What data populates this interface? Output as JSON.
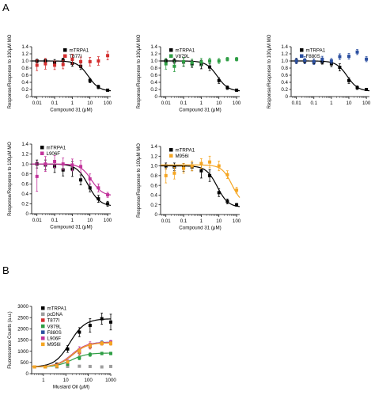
{
  "panel_labels": [
    "A",
    "B"
  ],
  "chart_data": [
    {
      "id": "a1",
      "type": "scatter",
      "xscale": "log",
      "xlabel": "Compound 31 (μM)",
      "ylabel": "Response/Response to 100μM MO",
      "xlim": [
        0.005,
        150
      ],
      "ylim": [
        0,
        1.4
      ],
      "xticks": [
        0.01,
        0.1,
        1,
        10,
        100
      ],
      "xtick_labels": [
        "0.01",
        "0.1",
        "1",
        "10",
        "100"
      ],
      "yticks": [
        0,
        0.2,
        0.4,
        0.6,
        0.8,
        1.0,
        1.2,
        1.4
      ],
      "ytick_labels": [
        "0",
        "0.2",
        "0.4",
        "0.6",
        "0.8",
        "1.0",
        "1.2",
        "1.4"
      ],
      "legend": [
        "mTRPA1",
        "T877I"
      ],
      "series": [
        {
          "name": "mTRPA1",
          "color": "#000000",
          "x": [
            0.01,
            0.03,
            0.1,
            0.3,
            1,
            3,
            10,
            30,
            100
          ],
          "y": [
            1.0,
            1.0,
            0.96,
            1.02,
            0.93,
            0.85,
            0.45,
            0.27,
            0.18
          ],
          "err": [
            0.05,
            0.06,
            0.08,
            0.06,
            0.08,
            0.09,
            0.06,
            0.05,
            0.03
          ],
          "fit": {
            "top": 1.0,
            "bottom": 0.15,
            "ic50": 8,
            "hill": 1.4
          }
        },
        {
          "name": "T877I",
          "color": "#d32f2f",
          "x": [
            0.01,
            0.03,
            0.1,
            0.3,
            1,
            3,
            10,
            30,
            100
          ],
          "y": [
            0.88,
            0.92,
            0.88,
            0.9,
            1.05,
            0.98,
            0.98,
            1.0,
            1.15
          ],
          "err": [
            0.15,
            0.15,
            0.12,
            0.12,
            0.14,
            0.13,
            0.12,
            0.12,
            0.12
          ]
        }
      ]
    },
    {
      "id": "a2",
      "type": "scatter",
      "xscale": "log",
      "xlabel": "Compound 31 (μM)",
      "ylabel": "Response/Response to 100μM MO",
      "xlim": [
        0.005,
        150
      ],
      "ylim": [
        0,
        1.4
      ],
      "xticks": [
        0.01,
        0.1,
        1,
        10,
        100
      ],
      "xtick_labels": [
        "0.01",
        "0.1",
        "1",
        "10",
        "100"
      ],
      "yticks": [
        0,
        0.2,
        0.4,
        0.6,
        0.8,
        1.0,
        1.2,
        1.4
      ],
      "ytick_labels": [
        "0",
        "0.2",
        "0.4",
        "0.6",
        "0.8",
        "1.0",
        "1.2",
        "1.4"
      ],
      "legend": [
        "mTRPA1",
        "V879L"
      ],
      "series": [
        {
          "name": "mTRPA1",
          "color": "#000000",
          "x": [
            0.01,
            0.03,
            0.1,
            0.3,
            1,
            3,
            10,
            30,
            100
          ],
          "y": [
            1.0,
            1.0,
            0.97,
            0.92,
            0.9,
            0.83,
            0.45,
            0.25,
            0.18
          ],
          "err": [
            0.06,
            0.07,
            0.12,
            0.1,
            0.12,
            0.1,
            0.08,
            0.05,
            0.03
          ],
          "fit": {
            "top": 1.0,
            "bottom": 0.15,
            "ic50": 8,
            "hill": 1.4
          }
        },
        {
          "name": "V879L",
          "color": "#2e9e44",
          "x": [
            0.01,
            0.03,
            0.1,
            0.3,
            1,
            3,
            10,
            30,
            100
          ],
          "y": [
            0.92,
            0.85,
            0.98,
            0.95,
            0.97,
            1.0,
            1.0,
            1.05,
            1.05
          ],
          "err": [
            0.15,
            0.15,
            0.12,
            0.1,
            0.1,
            0.08,
            0.07,
            0.05,
            0.05
          ]
        }
      ]
    },
    {
      "id": "a3",
      "type": "scatter",
      "xscale": "log",
      "xlabel": "",
      "ylabel": "Response/Response to 100μM MO",
      "xlim": [
        0.005,
        150
      ],
      "ylim": [
        0,
        1.4
      ],
      "xticks": [
        0.01,
        0.1,
        1,
        10,
        100
      ],
      "xtick_labels": [
        "0.01",
        "0.1",
        "1",
        "10",
        "100"
      ],
      "yticks": [
        0,
        0.2,
        0.4,
        0.6,
        0.8,
        1.0,
        1.2,
        1.4
      ],
      "ytick_labels": [
        "0",
        "0.2",
        "0.4",
        "0.6",
        "0.8",
        "1.0",
        "1.2",
        "1.4"
      ],
      "legend": [
        "mTRPA1",
        "F880S"
      ],
      "series": [
        {
          "name": "mTRPA1",
          "color": "#000000",
          "x": [
            0.01,
            0.03,
            0.1,
            0.3,
            1,
            3,
            10,
            30,
            100
          ],
          "y": [
            1.0,
            1.0,
            0.97,
            0.97,
            0.92,
            0.82,
            0.45,
            0.25,
            0.2
          ],
          "err": [
            0.06,
            0.06,
            0.05,
            0.06,
            0.08,
            0.1,
            0.08,
            0.05,
            0.03
          ],
          "fit": {
            "top": 1.0,
            "bottom": 0.15,
            "ic50": 8,
            "hill": 1.4
          }
        },
        {
          "name": "F880S",
          "color": "#2b4fa0",
          "x": [
            0.01,
            0.03,
            0.1,
            0.3,
            1,
            3,
            10,
            30,
            100
          ],
          "y": [
            1.0,
            1.02,
            0.98,
            1.05,
            1.0,
            1.12,
            1.13,
            1.25,
            1.05
          ],
          "err": [
            0.08,
            0.1,
            0.08,
            0.08,
            0.07,
            0.08,
            0.08,
            0.07,
            0.07
          ]
        }
      ]
    },
    {
      "id": "a4",
      "type": "scatter",
      "xscale": "log",
      "xlabel": "Compound 31 (μM)",
      "ylabel": "Response/Response to 100μM MO",
      "xlim": [
        0.005,
        150
      ],
      "ylim": [
        0,
        1.4
      ],
      "xticks": [
        0.01,
        0.1,
        1,
        10,
        100
      ],
      "xtick_labels": [
        "0.01",
        "0.1",
        "1",
        "10",
        "100"
      ],
      "yticks": [
        0,
        0.2,
        0.4,
        0.6,
        0.8,
        1.0,
        1.2,
        1.4
      ],
      "ytick_labels": [
        "0",
        "0.2",
        "0.4",
        "0.6",
        "0.8",
        "1.0",
        "1.2",
        "1.4"
      ],
      "legend": [
        "mTRPA1",
        "L906F"
      ],
      "series": [
        {
          "name": "mTRPA1",
          "color": "#000000",
          "x": [
            0.01,
            0.03,
            0.1,
            0.3,
            1,
            3,
            10,
            30,
            100
          ],
          "y": [
            1.0,
            0.98,
            0.95,
            0.88,
            0.9,
            0.68,
            0.52,
            0.3,
            0.2
          ],
          "err": [
            0.08,
            0.1,
            0.12,
            0.12,
            0.15,
            0.1,
            0.08,
            0.07,
            0.05
          ],
          "fit": {
            "top": 1.0,
            "bottom": 0.15,
            "ic50": 8,
            "hill": 1.3
          }
        },
        {
          "name": "L906F",
          "color": "#c2349b",
          "x": [
            0.01,
            0.03,
            0.1,
            0.3,
            1,
            3,
            10,
            30,
            100
          ],
          "y": [
            0.75,
            1.0,
            1.05,
            1.0,
            0.98,
            0.95,
            0.7,
            0.52,
            0.38
          ],
          "err": [
            0.3,
            0.15,
            0.12,
            0.12,
            0.12,
            0.12,
            0.1,
            0.08,
            0.05
          ],
          "fit": {
            "top": 1.0,
            "bottom": 0.36,
            "ic50": 12,
            "hill": 1.4
          }
        }
      ]
    },
    {
      "id": "a5",
      "type": "scatter",
      "xscale": "log",
      "xlabel": "Compound 31 (μM)",
      "ylabel": "Response/Response to 100μM MO",
      "xlim": [
        0.005,
        150
      ],
      "ylim": [
        0,
        1.4
      ],
      "xticks": [
        0.01,
        0.1,
        1,
        10,
        100
      ],
      "xtick_labels": [
        "0.01",
        "0.1",
        "1",
        "10",
        "100"
      ],
      "yticks": [
        0,
        0.2,
        0.4,
        0.6,
        0.8,
        1.0,
        1.2,
        1.4
      ],
      "ytick_labels": [
        "0",
        "0.2",
        "0.4",
        "0.6",
        "0.8",
        "1.0",
        "1.2",
        "1.4"
      ],
      "legend": [
        "mTRPA1",
        "M956I"
      ],
      "series": [
        {
          "name": "mTRPA1",
          "color": "#000000",
          "x": [
            0.01,
            0.03,
            0.1,
            0.3,
            1,
            3,
            10,
            30,
            100
          ],
          "y": [
            1.0,
            0.98,
            0.97,
            0.98,
            0.9,
            0.8,
            0.45,
            0.27,
            0.2
          ],
          "err": [
            0.06,
            0.08,
            0.08,
            0.08,
            0.15,
            0.12,
            0.08,
            0.05,
            0.03
          ],
          "fit": {
            "top": 1.0,
            "bottom": 0.15,
            "ic50": 8,
            "hill": 1.4
          }
        },
        {
          "name": "M956I",
          "color": "#f5a623",
          "x": [
            0.01,
            0.03,
            0.1,
            0.3,
            1,
            3,
            10,
            30,
            100
          ],
          "y": [
            0.8,
            0.85,
            0.95,
            1.0,
            1.05,
            1.08,
            1.0,
            0.82,
            0.5
          ],
          "err": [
            0.15,
            0.12,
            0.1,
            0.1,
            0.1,
            0.12,
            0.1,
            0.08,
            0.06
          ],
          "fit": {
            "top": 1.02,
            "bottom": 0.2,
            "ic50": 55,
            "hill": 1.5
          }
        }
      ]
    },
    {
      "id": "b",
      "type": "scatter",
      "xscale": "log",
      "xlabel": "Mustard Oil (μM)",
      "ylabel": "Fluorescence Counts (a.u.)",
      "xlim": [
        0.3,
        1000
      ],
      "ylim": [
        0,
        3000
      ],
      "xticks": [
        1,
        10,
        100,
        1000
      ],
      "xtick_labels": [
        "1",
        "10",
        "100",
        "1000"
      ],
      "yticks": [
        0,
        500,
        1000,
        1500,
        2000,
        2500,
        3000
      ],
      "ytick_labels": [
        "0",
        "500",
        "1000",
        "1500",
        "2000",
        "2500",
        "3000"
      ],
      "legend": [
        "mTRPA1",
        "pcDNA",
        "T877I",
        "V879L",
        "F880S",
        "L906F",
        "M956I"
      ],
      "series": [
        {
          "name": "mTRPA1",
          "color": "#000000",
          "x": [
            0.4,
            1.2,
            4,
            12,
            40,
            120,
            400,
            1000
          ],
          "y": [
            300,
            300,
            420,
            1100,
            1850,
            2150,
            2450,
            2300
          ],
          "err": [
            30,
            30,
            60,
            150,
            200,
            300,
            250,
            350
          ],
          "fit": {
            "bottom": 300,
            "top": 2450,
            "ec50": 15,
            "hill": 1.3
          }
        },
        {
          "name": "pcDNA",
          "color": "#9e9e9e",
          "x": [
            0.4,
            1.2,
            4,
            12,
            40,
            120,
            400,
            1000
          ],
          "y": [
            300,
            300,
            300,
            320,
            330,
            320,
            300,
            320
          ],
          "err": [
            20,
            20,
            20,
            25,
            25,
            25,
            25,
            25
          ]
        },
        {
          "name": "T877I",
          "color": "#d32f2f",
          "x": [
            0.4,
            1.2,
            4,
            12,
            40,
            120,
            400,
            1000
          ],
          "y": [
            300,
            300,
            330,
            480,
            950,
            1200,
            1350,
            1350
          ],
          "err": [
            20,
            20,
            30,
            60,
            120,
            100,
            80,
            80
          ],
          "fit": {
            "bottom": 300,
            "top": 1380,
            "ec50": 20,
            "hill": 1.3
          }
        },
        {
          "name": "V879L",
          "color": "#2e9e44",
          "x": [
            0.4,
            1.2,
            4,
            12,
            40,
            120,
            400,
            1000
          ],
          "y": [
            300,
            300,
            320,
            420,
            700,
            850,
            900,
            900
          ],
          "err": [
            20,
            20,
            30,
            40,
            80,
            80,
            60,
            60
          ],
          "fit": {
            "bottom": 300,
            "top": 920,
            "ec50": 18,
            "hill": 1.3
          }
        },
        {
          "name": "F880S",
          "color": "#2b4fa0",
          "x": [
            0.4,
            1.2,
            4,
            12,
            40,
            120,
            400,
            1000
          ],
          "y": [
            300,
            300,
            330,
            500,
            1000,
            1250,
            1380,
            1400
          ],
          "err": [
            20,
            20,
            30,
            60,
            120,
            100,
            80,
            80
          ],
          "fit": {
            "bottom": 300,
            "top": 1410,
            "ec50": 20,
            "hill": 1.3
          }
        },
        {
          "name": "L906F",
          "color": "#c2349b",
          "x": [
            0.4,
            1.2,
            4,
            12,
            40,
            120,
            400,
            1000
          ],
          "y": [
            300,
            300,
            350,
            550,
            1050,
            1300,
            1350,
            1400
          ],
          "err": [
            20,
            20,
            30,
            60,
            150,
            120,
            80,
            80
          ],
          "fit": {
            "bottom": 300,
            "top": 1400,
            "ec50": 18,
            "hill": 1.3
          }
        },
        {
          "name": "M956I",
          "color": "#f5a623",
          "x": [
            0.4,
            1.2,
            4,
            12,
            40,
            120,
            400,
            1000
          ],
          "y": [
            300,
            300,
            330,
            520,
            1000,
            1250,
            1350,
            1350
          ],
          "err": [
            20,
            20,
            30,
            60,
            120,
            100,
            80,
            80
          ],
          "fit": {
            "bottom": 300,
            "top": 1380,
            "ec50": 19,
            "hill": 1.3
          }
        }
      ]
    }
  ]
}
